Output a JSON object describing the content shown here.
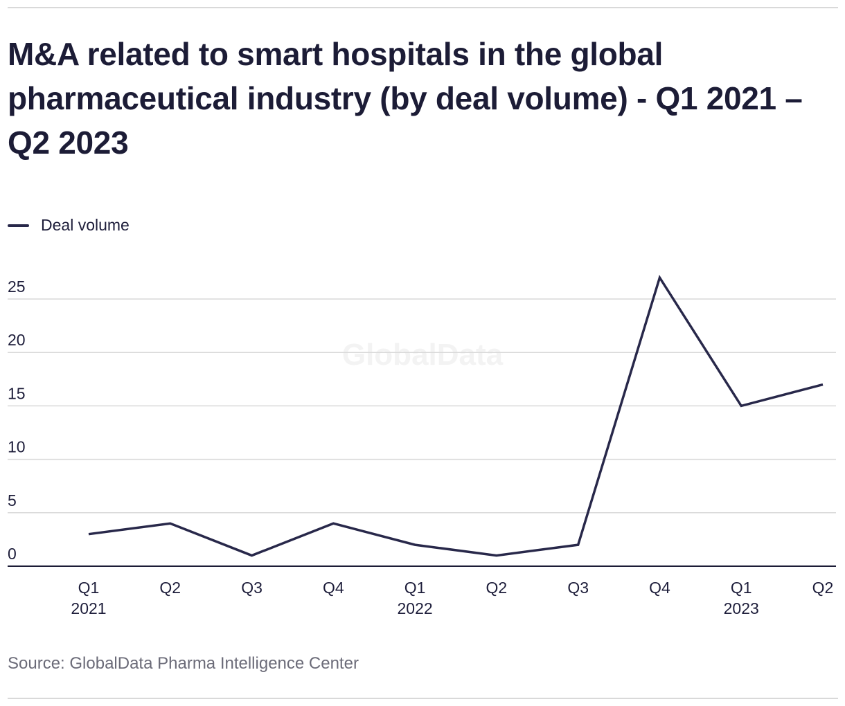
{
  "title": "M&A related to smart hospitals in the global pharmaceutical industry (by deal volume) - Q1 2021 – Q2 2023",
  "legend": {
    "label": "Deal volume",
    "color": "#28284a"
  },
  "watermark": "GlobalData",
  "source": "Source: GlobalData Pharma Intelligence Center",
  "chart_data": {
    "type": "line",
    "title": "M&A related to smart hospitals in the global pharmaceutical industry (by deal volume) - Q1 2021 – Q2 2023",
    "xlabel": "",
    "ylabel": "",
    "categories": [
      "Q1 2021",
      "Q2 2021",
      "Q3 2021",
      "Q4 2021",
      "Q1 2022",
      "Q2 2022",
      "Q3 2022",
      "Q4 2022",
      "Q1 2023",
      "Q2 2023"
    ],
    "tick_labels": [
      {
        "line1": "Q1",
        "line2": "2021"
      },
      {
        "line1": "Q2",
        "line2": ""
      },
      {
        "line1": "Q3",
        "line2": ""
      },
      {
        "line1": "Q4",
        "line2": ""
      },
      {
        "line1": "Q1",
        "line2": "2022"
      },
      {
        "line1": "Q2",
        "line2": ""
      },
      {
        "line1": "Q3",
        "line2": ""
      },
      {
        "line1": "Q4",
        "line2": ""
      },
      {
        "line1": "Q1",
        "line2": "2023"
      },
      {
        "line1": "Q2",
        "line2": ""
      }
    ],
    "series": [
      {
        "name": "Deal volume",
        "color": "#28284a",
        "values": [
          3,
          4,
          1,
          4,
          2,
          1,
          2,
          27,
          15,
          17
        ]
      }
    ],
    "yticks": [
      0,
      5,
      10,
      15,
      20,
      25
    ],
    "ylim": [
      0,
      25
    ],
    "grid": true,
    "legend_position": "top-left"
  }
}
